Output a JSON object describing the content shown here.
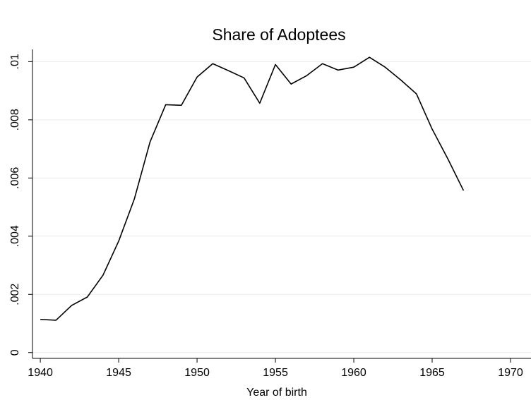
{
  "chart_data": {
    "type": "line",
    "title": "Share of Adoptees",
    "x_label": "Year of birth",
    "x": [
      1940,
      1941,
      1942,
      1943,
      1944,
      1945,
      1946,
      1947,
      1948,
      1949,
      1950,
      1951,
      1952,
      1953,
      1954,
      1955,
      1956,
      1957,
      1958,
      1959,
      1960,
      1961,
      1962,
      1963,
      1964,
      1965,
      1966,
      1967
    ],
    "values": [
      0.00114,
      0.00111,
      0.00162,
      0.00191,
      0.00266,
      0.00383,
      0.00528,
      0.00724,
      0.00852,
      0.0085,
      0.00947,
      0.00993,
      0.00969,
      0.00944,
      0.00857,
      0.0099,
      0.00923,
      0.00952,
      0.00993,
      0.00971,
      0.00981,
      0.01015,
      0.00981,
      0.00937,
      0.00889,
      0.00768,
      0.00666,
      0.00557
    ],
    "color": "#000000",
    "xlim": [
      1939.5,
      1970
    ],
    "xticks": [
      1940,
      1945,
      1950,
      1955,
      1960,
      1965,
      1970
    ],
    "ylim": [
      -0.0002,
      0.0103
    ],
    "yticks": [
      0,
      {
        "value": 0.002,
        "label": ".002"
      },
      {
        "value": 0.004,
        "label": ".004"
      },
      {
        "value": 0.006,
        "label": ".006"
      },
      {
        "value": 0.008,
        "label": ".008"
      },
      {
        "value": 0.01,
        "label": ".01"
      }
    ],
    "grid": true
  }
}
